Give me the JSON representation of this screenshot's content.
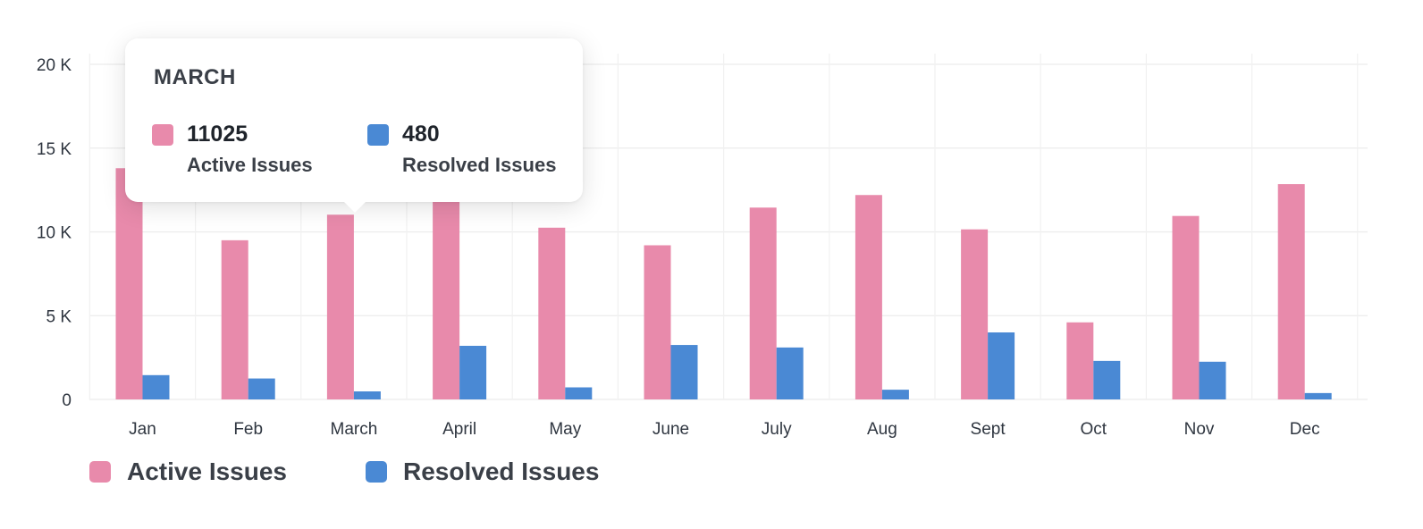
{
  "chart_data": {
    "type": "bar",
    "categories": [
      "Jan",
      "Feb",
      "March",
      "April",
      "May",
      "June",
      "July",
      "Aug",
      "Sept",
      "Oct",
      "Nov",
      "Dec"
    ],
    "series": [
      {
        "name": "Active Issues",
        "color": "#e88aab",
        "values": [
          13800,
          9500,
          11025,
          11800,
          10250,
          9200,
          11450,
          12200,
          10150,
          4600,
          10950,
          12850
        ]
      },
      {
        "name": "Resolved Issues",
        "color": "#4a89d4",
        "values": [
          1450,
          1250,
          480,
          3200,
          720,
          3250,
          3100,
          580,
          4000,
          2300,
          2250,
          380
        ]
      }
    ],
    "yticks": [
      "0",
      "5 K",
      "10 K",
      "15 K",
      "20 K"
    ],
    "ylim": [
      0,
      20000
    ],
    "grid": true,
    "legend_position": "bottom-left",
    "title": "",
    "xlabel": "",
    "ylabel": ""
  },
  "tooltip": {
    "title": "MARCH",
    "active_value": "11025",
    "active_label": "Active Issues",
    "resolved_value": "480",
    "resolved_label": "Resolved Issues"
  },
  "legend": {
    "active_label": "Active Issues",
    "resolved_label": "Resolved Issues"
  }
}
